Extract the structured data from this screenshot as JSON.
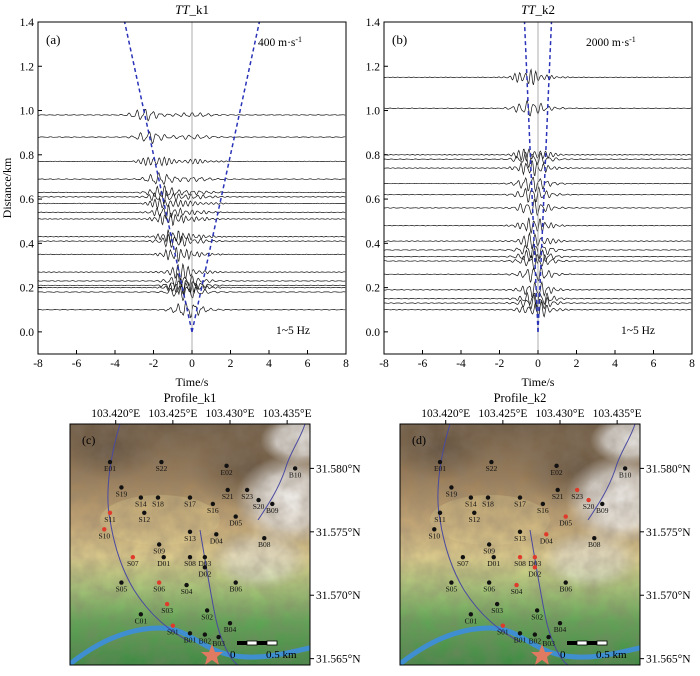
{
  "colors": {
    "trace": "#111111",
    "moveout": "#2a33b8",
    "zeroline": "#999999",
    "station": "#111111",
    "station_highlight": "#e03a2a",
    "river": "#3f8fd0",
    "boundary": "#4a4aa0",
    "star": "#e07a60"
  },
  "chart_data": [
    {
      "type": "line",
      "panel": "(a)",
      "title": "TT_k1",
      "title_italic": "TT",
      "title_rest": "_k1",
      "xlabel": "Time/s",
      "ylabel": "Distance/km",
      "xlim": [
        -8,
        8
      ],
      "ylim": [
        -0.1,
        1.4
      ],
      "xticks": [
        "-8",
        "-6",
        "-4",
        "-2",
        "0",
        "2",
        "4",
        "6",
        "8"
      ],
      "yticks": [
        "0.0",
        "0.2",
        "0.4",
        "0.6",
        "0.8",
        "1.0",
        "1.2",
        "1.4"
      ],
      "velocity_label": "400 m·s",
      "velocity_exp": "-1",
      "freq_label": "1~5 Hz",
      "velocity_m_per_s": 400,
      "trace_distances_km": [
        0.1,
        0.18,
        0.2,
        0.21,
        0.23,
        0.27,
        0.35,
        0.41,
        0.43,
        0.51,
        0.54,
        0.58,
        0.61,
        0.63,
        0.69,
        0.77,
        0.88,
        0.98
      ],
      "moveout_lines": [
        [
          0,
          0,
          -3.5,
          1.4
        ],
        [
          0,
          0,
          3.5,
          1.4
        ]
      ]
    },
    {
      "type": "line",
      "panel": "(b)",
      "title": "TT_k2",
      "title_italic": "TT",
      "title_rest": "_k2",
      "xlabel": "Time/s",
      "ylabel": "",
      "xlim": [
        -8,
        8
      ],
      "ylim": [
        -0.1,
        1.4
      ],
      "xticks": [
        "-8",
        "-6",
        "-4",
        "-2",
        "0",
        "2",
        "4",
        "6",
        "8"
      ],
      "yticks": [
        "0.0",
        "0.2",
        "0.4",
        "0.6",
        "0.8",
        "1.0",
        "1.2",
        "1.4"
      ],
      "velocity_label": "2000 m·s",
      "velocity_exp": "-1",
      "freq_label": "1~5 Hz",
      "velocity_m_per_s": 2000,
      "trace_distances_km": [
        0.1,
        0.13,
        0.15,
        0.19,
        0.26,
        0.32,
        0.34,
        0.37,
        0.41,
        0.48,
        0.56,
        0.62,
        0.67,
        0.74,
        0.78,
        0.8,
        1.01,
        1.15
      ],
      "moveout_lines": [
        [
          0,
          0,
          -0.7,
          1.4
        ],
        [
          0,
          0,
          0.7,
          1.4
        ]
      ]
    }
  ],
  "maps": [
    {
      "panel": "(c)",
      "title": "Profile_k1",
      "lon_ticks": [
        "103.420°E",
        "103.425°E",
        "103.430°E",
        "103.435°E"
      ],
      "lat_ticks": [
        "31.580°N",
        "31.575°N",
        "31.570°N",
        "31.565°N"
      ],
      "lon_range": [
        103.416,
        103.437
      ],
      "lat_range": [
        31.5645,
        31.5835
      ],
      "scale_labels": [
        "0",
        "0.5 km"
      ],
      "highlighted": [
        "S10",
        "S11",
        "S06",
        "S03",
        "S01",
        "S07"
      ],
      "stations": [
        {
          "id": "E01",
          "lon": 103.4195,
          "lat": 31.5805
        },
        {
          "id": "S22",
          "lon": 103.424,
          "lat": 31.5805
        },
        {
          "id": "E02",
          "lon": 103.4297,
          "lat": 31.5802
        },
        {
          "id": "B10",
          "lon": 103.4357,
          "lat": 31.58
        },
        {
          "id": "S19",
          "lon": 103.4205,
          "lat": 31.5785
        },
        {
          "id": "S23",
          "lon": 103.4315,
          "lat": 31.5783
        },
        {
          "id": "S21",
          "lon": 103.4298,
          "lat": 31.5783
        },
        {
          "id": "S14",
          "lon": 103.4222,
          "lat": 31.5777
        },
        {
          "id": "S18",
          "lon": 103.4237,
          "lat": 31.5777
        },
        {
          "id": "S17",
          "lon": 103.4265,
          "lat": 31.5777
        },
        {
          "id": "S16",
          "lon": 103.4285,
          "lat": 31.5772
        },
        {
          "id": "S20",
          "lon": 103.4325,
          "lat": 31.5775
        },
        {
          "id": "B09",
          "lon": 103.4337,
          "lat": 31.5772
        },
        {
          "id": "S11",
          "lon": 103.4195,
          "lat": 31.5765
        },
        {
          "id": "S12",
          "lon": 103.4225,
          "lat": 31.5765
        },
        {
          "id": "D05",
          "lon": 103.4305,
          "lat": 31.5762
        },
        {
          "id": "S10",
          "lon": 103.419,
          "lat": 31.5752
        },
        {
          "id": "S13",
          "lon": 103.4265,
          "lat": 31.575
        },
        {
          "id": "D04",
          "lon": 103.4288,
          "lat": 31.5748
        },
        {
          "id": "B08",
          "lon": 103.433,
          "lat": 31.5745
        },
        {
          "id": "S09",
          "lon": 103.4238,
          "lat": 31.574
        },
        {
          "id": "S07",
          "lon": 103.4215,
          "lat": 31.573
        },
        {
          "id": "D01",
          "lon": 103.4242,
          "lat": 31.573
        },
        {
          "id": "S08",
          "lon": 103.4265,
          "lat": 31.573
        },
        {
          "id": "D03",
          "lon": 103.4278,
          "lat": 31.573
        },
        {
          "id": "D02",
          "lon": 103.4278,
          "lat": 31.5722
        },
        {
          "id": "S05",
          "lon": 103.4205,
          "lat": 31.571
        },
        {
          "id": "S06",
          "lon": 103.4238,
          "lat": 31.571
        },
        {
          "id": "S04",
          "lon": 103.4262,
          "lat": 31.5708
        },
        {
          "id": "B06",
          "lon": 103.4305,
          "lat": 31.571
        },
        {
          "id": "S03",
          "lon": 103.4245,
          "lat": 31.5693
        },
        {
          "id": "S02",
          "lon": 103.428,
          "lat": 31.5688
        },
        {
          "id": "C01",
          "lon": 103.4222,
          "lat": 31.5685
        },
        {
          "id": "B04",
          "lon": 103.43,
          "lat": 31.5678
        },
        {
          "id": "S01",
          "lon": 103.425,
          "lat": 31.5676
        },
        {
          "id": "B01",
          "lon": 103.4265,
          "lat": 31.567
        },
        {
          "id": "B02",
          "lon": 103.4278,
          "lat": 31.5669
        },
        {
          "id": "B03",
          "lon": 103.429,
          "lat": 31.5667
        }
      ]
    },
    {
      "panel": "(d)",
      "title": "Profile_k2",
      "lon_ticks": [
        "103.420°E",
        "103.425°E",
        "103.430°E",
        "103.435°E"
      ],
      "lat_ticks": [
        "31.580°N",
        "31.575°N",
        "31.570°N",
        "31.565°N"
      ],
      "lon_range": [
        103.416,
        103.437
      ],
      "lat_range": [
        31.5645,
        31.5835
      ],
      "scale_labels": [
        "0",
        "0.5 km"
      ],
      "highlighted": [
        "S20",
        "S23",
        "D05",
        "D04",
        "D03",
        "S08",
        "D02",
        "S04",
        "S01"
      ],
      "stations": [
        {
          "id": "E01",
          "lon": 103.4195,
          "lat": 31.5805
        },
        {
          "id": "S22",
          "lon": 103.424,
          "lat": 31.5805
        },
        {
          "id": "E02",
          "lon": 103.4297,
          "lat": 31.5802
        },
        {
          "id": "B10",
          "lon": 103.4357,
          "lat": 31.58
        },
        {
          "id": "S19",
          "lon": 103.4205,
          "lat": 31.5785
        },
        {
          "id": "S23",
          "lon": 103.4315,
          "lat": 31.5783
        },
        {
          "id": "S21",
          "lon": 103.4298,
          "lat": 31.5783
        },
        {
          "id": "S14",
          "lon": 103.4222,
          "lat": 31.5777
        },
        {
          "id": "S18",
          "lon": 103.4237,
          "lat": 31.5777
        },
        {
          "id": "S17",
          "lon": 103.4265,
          "lat": 31.5777
        },
        {
          "id": "S16",
          "lon": 103.4285,
          "lat": 31.5772
        },
        {
          "id": "S20",
          "lon": 103.4325,
          "lat": 31.5775
        },
        {
          "id": "B09",
          "lon": 103.4337,
          "lat": 31.5772
        },
        {
          "id": "S11",
          "lon": 103.4195,
          "lat": 31.5765
        },
        {
          "id": "S12",
          "lon": 103.4225,
          "lat": 31.5765
        },
        {
          "id": "D05",
          "lon": 103.4305,
          "lat": 31.5762
        },
        {
          "id": "S10",
          "lon": 103.419,
          "lat": 31.5752
        },
        {
          "id": "S13",
          "lon": 103.4265,
          "lat": 31.575
        },
        {
          "id": "D04",
          "lon": 103.4288,
          "lat": 31.5748
        },
        {
          "id": "B08",
          "lon": 103.433,
          "lat": 31.5745
        },
        {
          "id": "S09",
          "lon": 103.4238,
          "lat": 31.574
        },
        {
          "id": "S07",
          "lon": 103.4215,
          "lat": 31.573
        },
        {
          "id": "D01",
          "lon": 103.4242,
          "lat": 31.573
        },
        {
          "id": "S08",
          "lon": 103.4265,
          "lat": 31.573
        },
        {
          "id": "D03",
          "lon": 103.4278,
          "lat": 31.573
        },
        {
          "id": "D02",
          "lon": 103.4278,
          "lat": 31.5722
        },
        {
          "id": "S05",
          "lon": 103.4205,
          "lat": 31.571
        },
        {
          "id": "S06",
          "lon": 103.4238,
          "lat": 31.571
        },
        {
          "id": "S04",
          "lon": 103.4262,
          "lat": 31.5708
        },
        {
          "id": "B06",
          "lon": 103.4305,
          "lat": 31.571
        },
        {
          "id": "S03",
          "lon": 103.4245,
          "lat": 31.5693
        },
        {
          "id": "S02",
          "lon": 103.428,
          "lat": 31.5688
        },
        {
          "id": "C01",
          "lon": 103.4222,
          "lat": 31.5685
        },
        {
          "id": "B04",
          "lon": 103.43,
          "lat": 31.5678
        },
        {
          "id": "S01",
          "lon": 103.425,
          "lat": 31.5676
        },
        {
          "id": "B01",
          "lon": 103.4265,
          "lat": 31.567
        },
        {
          "id": "B02",
          "lon": 103.4278,
          "lat": 31.5669
        },
        {
          "id": "B03",
          "lon": 103.429,
          "lat": 31.5667
        }
      ]
    }
  ]
}
